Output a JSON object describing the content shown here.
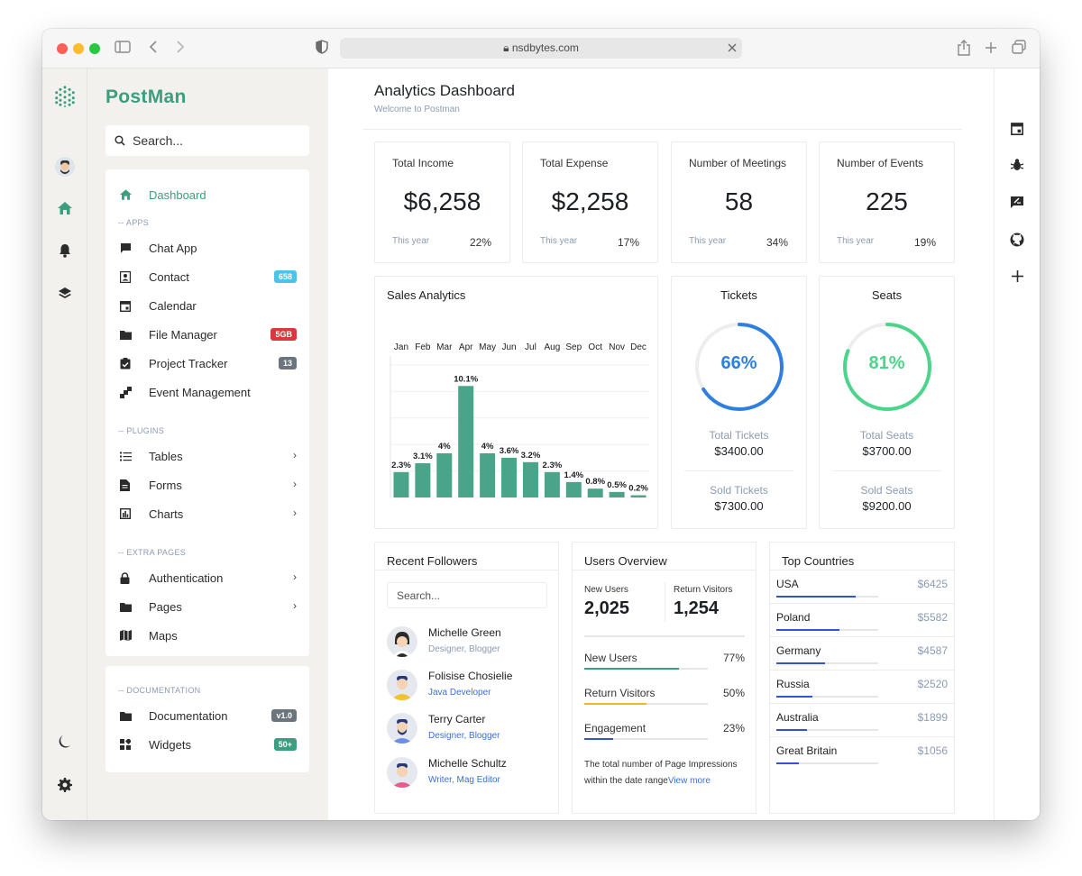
{
  "browser": {
    "url": "nsdbytes.com"
  },
  "brand": {
    "name": "PostMan"
  },
  "search": {
    "placeholder": "Search..."
  },
  "sidebar": {
    "dashboard": "Dashboard",
    "sections": {
      "apps": "-- APPS",
      "plugins": "-- PLUGINS",
      "extra": "-- EXTRA PAGES",
      "docs": "-- DOCUMENTATION"
    },
    "apps": [
      {
        "label": "Chat App"
      },
      {
        "label": "Contact",
        "badge": "658",
        "badge_color": "#4cc4e8"
      },
      {
        "label": "Calendar"
      },
      {
        "label": "File Manager",
        "badge": "5GB",
        "badge_color": "#d9383f"
      },
      {
        "label": "Project Tracker",
        "badge": "13",
        "badge_color": "#6c757d"
      },
      {
        "label": "Event Management"
      }
    ],
    "plugins": [
      {
        "label": "Tables"
      },
      {
        "label": "Forms"
      },
      {
        "label": "Charts"
      }
    ],
    "extra": [
      {
        "label": "Authentication"
      },
      {
        "label": "Pages"
      },
      {
        "label": "Maps"
      }
    ],
    "docs": [
      {
        "label": "Documentation",
        "badge": "v1.0",
        "badge_color": "#6c757d"
      },
      {
        "label": "Widgets",
        "badge": "50+",
        "badge_color": "#3a9e7f"
      }
    ]
  },
  "header": {
    "title": "Analytics Dashboard",
    "subtitle": "Welcome to Postman"
  },
  "stats": [
    {
      "title": "Total Income",
      "value": "$6,258",
      "period": "This year",
      "pct": "22%"
    },
    {
      "title": "Total Expense",
      "value": "$2,258",
      "period": "This year",
      "pct": "17%"
    },
    {
      "title": "Number of Meetings",
      "value": "58",
      "period": "This year",
      "pct": "34%"
    },
    {
      "title": "Number of Events",
      "value": "225",
      "period": "This year",
      "pct": "19%"
    }
  ],
  "sales": {
    "title": "Sales Analytics"
  },
  "chart_data": {
    "type": "bar",
    "title": "Sales Analytics",
    "categories": [
      "Jan",
      "Feb",
      "Mar",
      "Apr",
      "May",
      "Jun",
      "Jul",
      "Aug",
      "Sep",
      "Oct",
      "Nov",
      "Dec"
    ],
    "values": [
      2.3,
      3.1,
      4,
      10.1,
      4,
      3.6,
      3.2,
      2.3,
      1.4,
      0.8,
      0.5,
      0.2
    ],
    "labels": [
      "2.3%",
      "3.1%",
      "4%",
      "10.1%",
      "4%",
      "3.6%",
      "3.2%",
      "2.3%",
      "1.4%",
      "0.8%",
      "0.5%",
      "0.2%"
    ],
    "ylim": [
      0,
      12
    ],
    "grid": true,
    "color": "#4aa48a"
  },
  "tickets": {
    "title": "Tickets",
    "pct": "66%",
    "value": 0.66,
    "total_label": "Total Tickets",
    "total": "$3400.00",
    "sold_label": "Sold Tickets",
    "sold": "$7300.00",
    "color": "#2f7fe0"
  },
  "seats": {
    "title": "Seats",
    "pct": "81%",
    "value": 0.81,
    "total_label": "Total Seats",
    "total": "$3700.00",
    "sold_label": "Sold Seats",
    "sold": "$9200.00",
    "color": "#4cd48a"
  },
  "followers": {
    "title": "Recent Followers",
    "search_placeholder": "Search...",
    "items": [
      {
        "name": "Michelle Green",
        "role": "Designer, Blogger"
      },
      {
        "name": "Folisise Chosielie",
        "role": "Java Developer"
      },
      {
        "name": "Terry Carter",
        "role": "Designer, Blogger"
      },
      {
        "name": "Michelle Schultz",
        "role": "Writer, Mag Editor"
      }
    ]
  },
  "users": {
    "title": "Users Overview",
    "new_label": "New Users",
    "new_value": "2,025",
    "return_label": "Return Visitors",
    "return_value": "1,254",
    "bars": [
      {
        "label": "New Users",
        "pct": "77%",
        "value": 0.77,
        "color": "#3a9e7f"
      },
      {
        "label": "Return Visitors",
        "pct": "50%",
        "value": 0.5,
        "color": "#f2b824"
      },
      {
        "label": "Engagement",
        "pct": "23%",
        "value": 0.23,
        "color": "#2f55d4"
      }
    ],
    "note": "The total number of Page Impressions within the date range",
    "note_link": "View more"
  },
  "countries": {
    "title": "Top Countries",
    "items": [
      {
        "name": "USA",
        "value": "$6425",
        "share": 0.78
      },
      {
        "name": "Poland",
        "value": "$5582",
        "share": 0.62
      },
      {
        "name": "Germany",
        "value": "$4587",
        "share": 0.48
      },
      {
        "name": "Russia",
        "value": "$2520",
        "share": 0.35
      },
      {
        "name": "Australia",
        "value": "$1899",
        "share": 0.3
      },
      {
        "name": "Great Britain",
        "value": "$1056",
        "share": 0.22
      }
    ]
  }
}
